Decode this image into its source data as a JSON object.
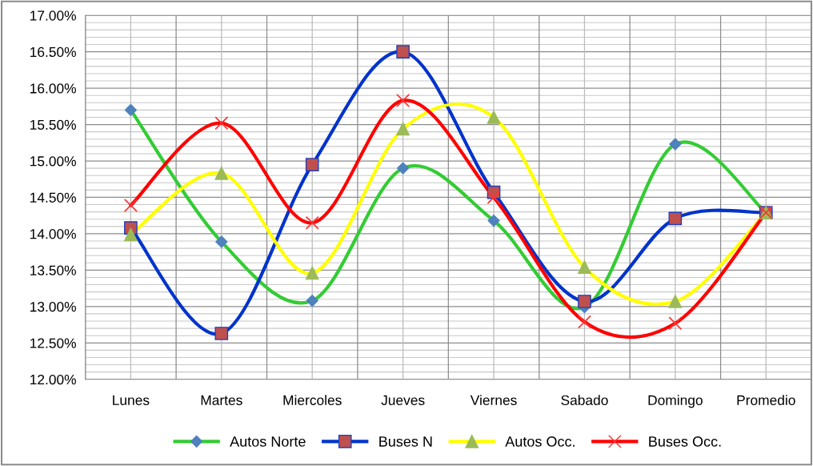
{
  "chart_data": {
    "type": "line",
    "categories": [
      "Lunes",
      "Martes",
      "Miercoles",
      "Jueves",
      "Viernes",
      "Sabado",
      "Domingo",
      "Promedio"
    ],
    "series": [
      {
        "name": "Autos Norte",
        "color": "#33cc33",
        "marker": "diamond",
        "values": [
          15.7,
          13.89,
          13.08,
          14.9,
          14.18,
          12.99,
          15.23,
          14.29
        ]
      },
      {
        "name": "Buses N",
        "color": "#0033cc",
        "marker": "square",
        "values": [
          14.08,
          12.63,
          14.95,
          16.5,
          14.57,
          13.07,
          14.21,
          14.29
        ]
      },
      {
        "name": "Autos Occ.",
        "color": "#ffff00",
        "marker": "triangle",
        "values": [
          13.99,
          14.83,
          13.46,
          15.44,
          15.6,
          13.54,
          13.07,
          14.29
        ]
      },
      {
        "name": "Buses Occ.",
        "color": "#ff0000",
        "marker": "cross",
        "values": [
          14.39,
          15.52,
          14.15,
          15.83,
          14.5,
          12.79,
          12.77,
          14.29
        ]
      }
    ],
    "ylim": [
      12,
      17
    ],
    "yticks": [
      {
        "value": 12,
        "label": "12.00%"
      },
      {
        "value": 12.5,
        "label": "12.50%"
      },
      {
        "value": 13,
        "label": "13.00%"
      },
      {
        "value": 13.5,
        "label": "13.50%"
      },
      {
        "value": 14,
        "label": "14.00%"
      },
      {
        "value": 14.5,
        "label": "14.50%"
      },
      {
        "value": 15,
        "label": "15.00%"
      },
      {
        "value": 15.5,
        "label": "15.50%"
      },
      {
        "value": 16,
        "label": "16.00%"
      },
      {
        "value": 16.5,
        "label": "16.50%"
      },
      {
        "value": 17,
        "label": "17.00%"
      }
    ],
    "grid": true,
    "legend": "bottom"
  }
}
